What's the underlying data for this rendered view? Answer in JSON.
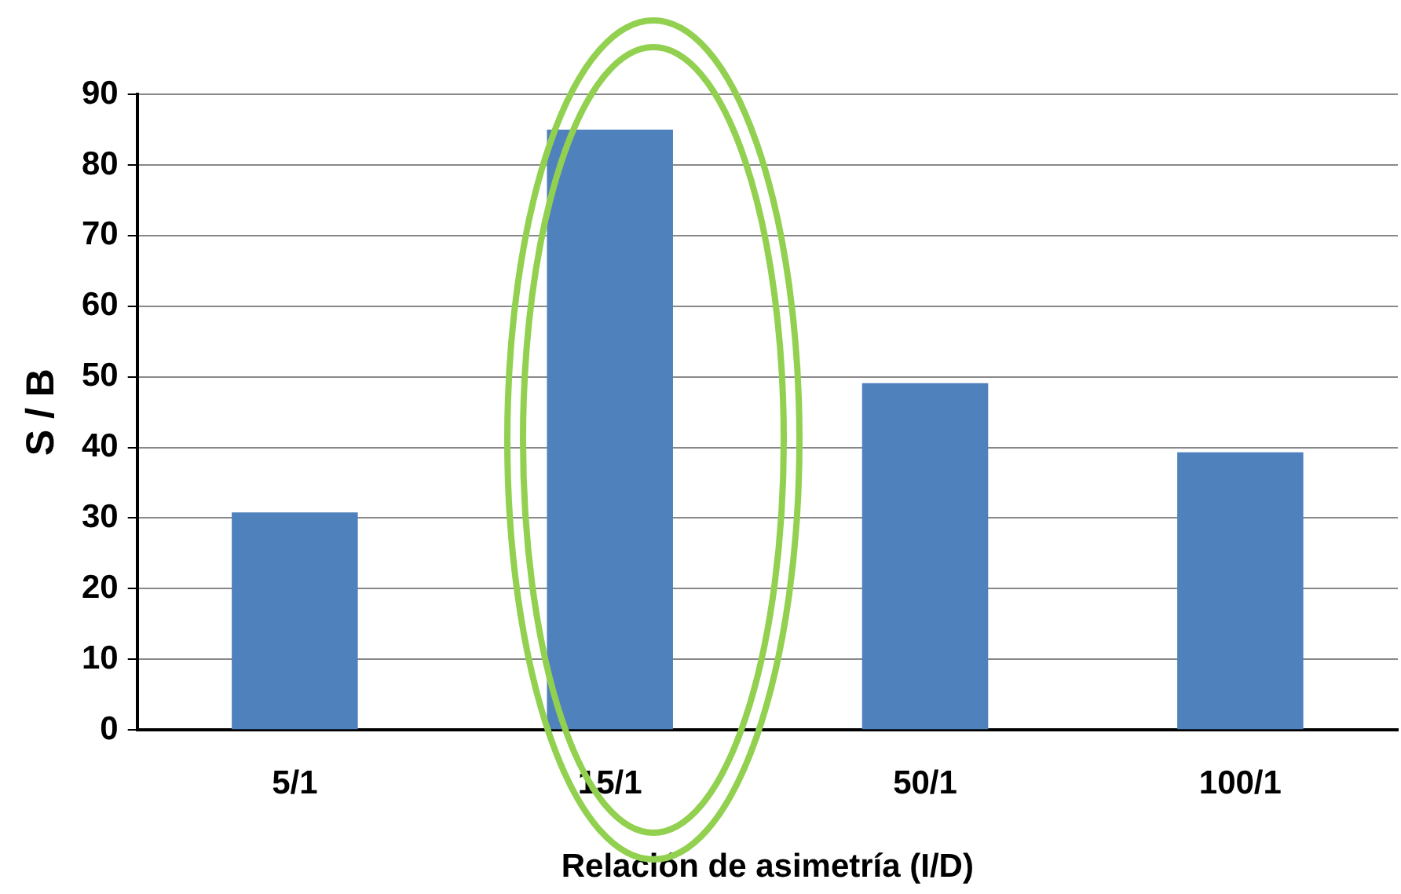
{
  "chart_data": {
    "type": "bar",
    "xlabel": "Relación de asimetría (I/D)",
    "ylabel": "S / B",
    "categories": [
      "5/1",
      "15/1",
      "50/1",
      "100/1"
    ],
    "values": [
      30.8,
      85,
      49.1,
      39.3
    ],
    "color": "#4f81bd",
    "ylim": [
      0,
      90
    ],
    "yticks": [
      0,
      10,
      20,
      30,
      40,
      50,
      60,
      70,
      80,
      90
    ],
    "grid": "y",
    "legend": false
  }
}
